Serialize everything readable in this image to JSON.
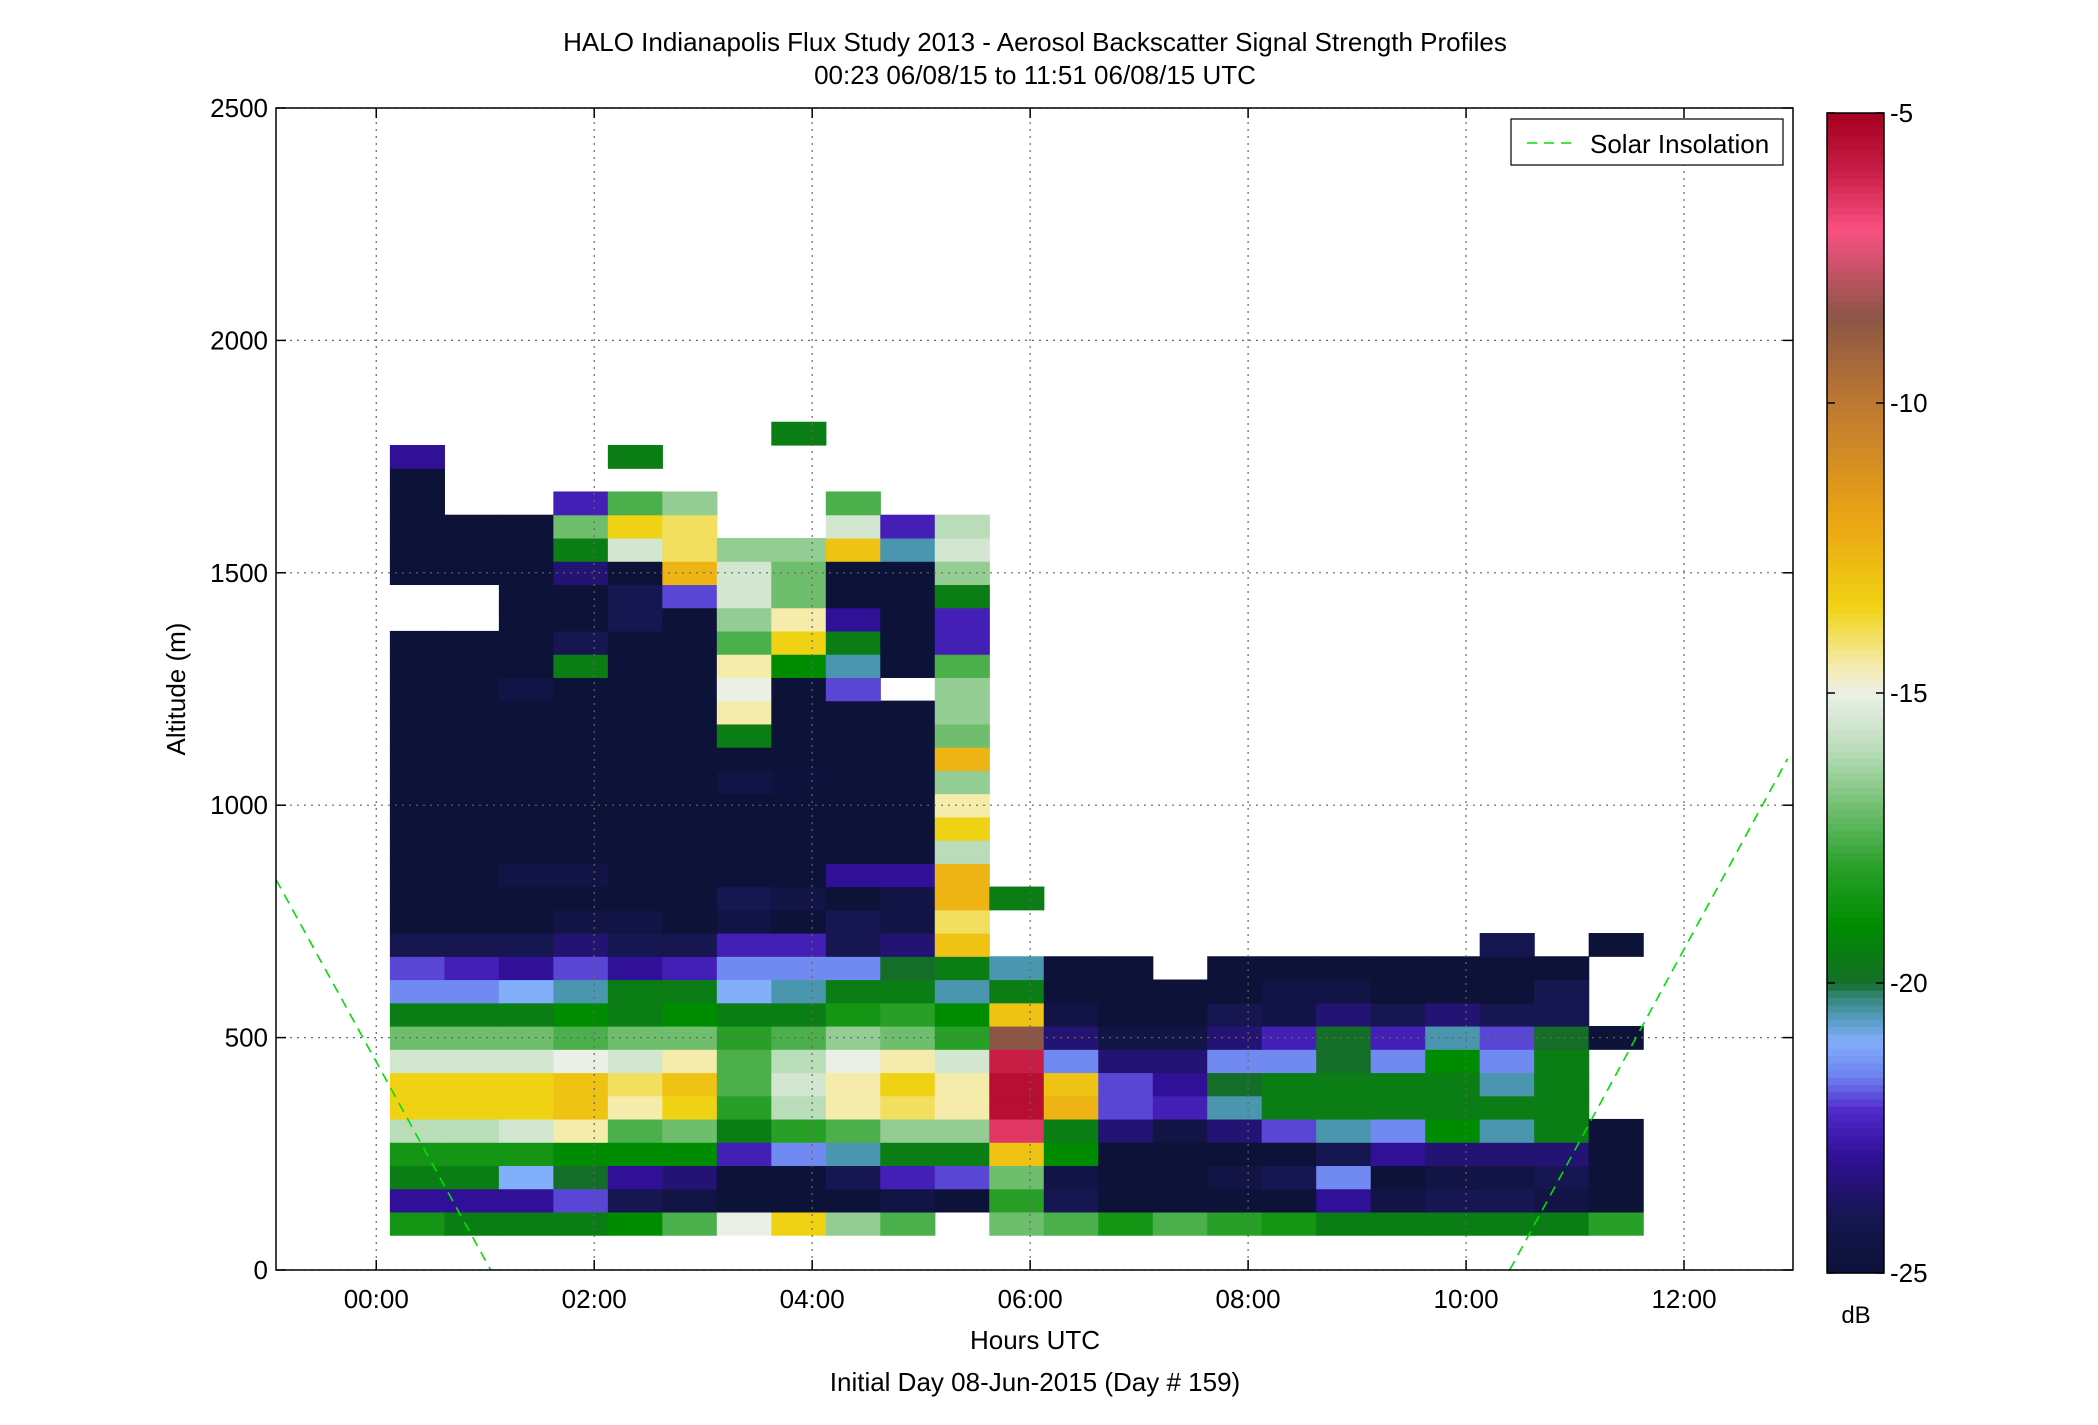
{
  "chart_data": {
    "type": "heatmap",
    "title": "HALO Indianapolis Flux Study 2013 - Aerosol Backscatter Signal Strength Profiles",
    "subtitle": "00:23 06/08/15 to 11:51 06/08/15  UTC",
    "xlabel": "Hours UTC",
    "xlabel2": "Initial Day 08-Jun-2015 (Day # 159)",
    "ylabel": "Altitude (m)",
    "xlim": [
      -0.92,
      13.0
    ],
    "ylim": [
      0,
      2500
    ],
    "xticks": [
      0,
      2,
      4,
      6,
      8,
      10,
      12
    ],
    "xtick_labels": [
      "00:00",
      "02:00",
      "04:00",
      "06:00",
      "08:00",
      "10:00",
      "12:00"
    ],
    "yticks": [
      0,
      500,
      1000,
      1500,
      2000,
      2500
    ],
    "ytick_labels": [
      "0",
      "500",
      "1000",
      "1500",
      "2000",
      "2500"
    ],
    "grid": true,
    "legend": {
      "placement": "top-right",
      "entries": [
        "Solar Insolation"
      ]
    },
    "colorbar": {
      "unit": "dB",
      "range": [
        -25,
        -5
      ],
      "ticks": [
        -25,
        -20,
        -15,
        -10,
        -5
      ],
      "tick_labels": [
        "-25",
        "-20",
        "-15",
        "-10",
        "-5"
      ]
    },
    "x": [
      0.375,
      0.875,
      1.375,
      1.875,
      2.375,
      2.875,
      3.375,
      3.875,
      4.375,
      4.875,
      5.375,
      5.875,
      6.375,
      6.875,
      7.375,
      7.875,
      8.375,
      8.875,
      9.375,
      9.875,
      10.375,
      10.875,
      11.375
    ],
    "y": [
      100,
      150,
      200,
      250,
      300,
      350,
      400,
      450,
      500,
      550,
      600,
      650,
      700,
      750,
      800,
      850,
      900,
      950,
      1000,
      1050,
      1100,
      1150,
      1200,
      1250,
      1300,
      1350,
      1400,
      1450,
      1500,
      1550,
      1600,
      1650,
      1700,
      1750,
      1800
    ],
    "values": [
      [
        -18.5,
        -19.5,
        -19.5,
        -19.5,
        -19,
        -17.5,
        -15,
        -13.5,
        -16.5,
        -17.5,
        null,
        -17,
        -17.5,
        -18.5,
        -17.5,
        -18,
        -18.5,
        -19.5,
        -19.5,
        -19.5,
        -19.5,
        -19.5,
        -18
      ],
      [
        -23,
        -23,
        -23,
        -22,
        -24,
        -24.5,
        -25,
        -25,
        -25,
        -24.5,
        -25,
        -18,
        -24,
        -25,
        -25,
        -25,
        -25,
        -23,
        -24.5,
        -24,
        -24,
        -24.5,
        -25
      ],
      [
        -19.5,
        -19.5,
        -21,
        -20,
        -23,
        -23.5,
        -25,
        -25,
        -24,
        -22.5,
        -22,
        -17,
        -24.5,
        -25,
        -25,
        -24.5,
        -24,
        -21.5,
        -25,
        -24.5,
        -24.5,
        -24,
        -25
      ],
      [
        -18.5,
        -18.5,
        -18.5,
        -19,
        -19,
        -19,
        -22.5,
        -21.5,
        -20.5,
        -19.5,
        -19.5,
        -13,
        -19,
        -25,
        -25,
        -25,
        -25,
        -24,
        -23,
        -23.5,
        -23.5,
        -23.5,
        -25
      ],
      [
        -16,
        -16,
        -15.5,
        -14.5,
        -17.5,
        -17,
        -19.5,
        -18,
        -17.5,
        -16.5,
        -16.5,
        -6.5,
        -19.5,
        -23.5,
        -24.5,
        -23.5,
        -22,
        -20.5,
        -21.5,
        -19,
        -20.5,
        -19.5,
        -25
      ],
      [
        -13.5,
        -13.5,
        -13.5,
        -13,
        -14.5,
        -13.5,
        -18,
        -16,
        -14.5,
        -14,
        -14.5,
        -5.5,
        -12.5,
        -22,
        -22.5,
        -20.5,
        -19.5,
        -19.5,
        -19.5,
        -19.5,
        -19.5,
        -19.5,
        null
      ],
      [
        -13.5,
        -13.5,
        -13.5,
        -13,
        -14,
        -13,
        -17.5,
        -15.5,
        -14.5,
        -13.5,
        -14.5,
        -5.5,
        -13,
        -22,
        -23,
        -20,
        -19.5,
        -19.5,
        -19.5,
        -19.5,
        -20.5,
        -19.5,
        null
      ],
      [
        -15.5,
        -15.5,
        -15.5,
        -15,
        -15.5,
        -14.5,
        -17.5,
        -16,
        -15,
        -14.5,
        -15.5,
        -6,
        -21.5,
        -23.5,
        -23.5,
        -21.5,
        -21.5,
        -20,
        -21.5,
        -19,
        -21.5,
        -19.5,
        null
      ],
      [
        -17,
        -17,
        -17,
        -17.5,
        -17,
        -17,
        -18,
        -17.5,
        -16.5,
        -17,
        -18,
        -8.5,
        -23.5,
        -24.5,
        -24.5,
        -23.5,
        -22.5,
        -20,
        -22.5,
        -20.5,
        -22,
        -20,
        -25
      ],
      [
        -19.5,
        -19.5,
        -19.5,
        -19,
        -19.5,
        -19,
        -19.5,
        -19.5,
        -18.5,
        -18,
        -19,
        -13,
        -24.5,
        -25,
        -25,
        -24,
        -24.5,
        -23.5,
        -24,
        -23.5,
        -24,
        -24,
        null
      ],
      [
        -21.5,
        -21.5,
        -21,
        -20.5,
        -19.5,
        -19.5,
        -21,
        -20.5,
        -19.5,
        -19.5,
        -20.5,
        -19.5,
        -25,
        -25,
        -25,
        -25,
        -24.5,
        -24.5,
        -25,
        -25,
        -25,
        -24,
        null
      ],
      [
        -22,
        -22.5,
        -23,
        -22,
        -23,
        -22.5,
        -21.5,
        -21.5,
        -21.5,
        -20,
        -19.5,
        -20.5,
        -25,
        -25,
        null,
        -25,
        -25,
        -25,
        -25,
        -25,
        -25,
        -25,
        null
      ],
      [
        -24,
        -24,
        -24,
        -23.5,
        -24,
        -24,
        -22.5,
        -22.5,
        -24,
        -23.5,
        -13,
        null,
        null,
        null,
        null,
        null,
        null,
        null,
        null,
        null,
        -24,
        null,
        -25
      ],
      [
        -25,
        -25,
        -25,
        -24.5,
        -24.5,
        -25,
        -24.5,
        -25,
        -24,
        -24.5,
        -14,
        null,
        null,
        null,
        null,
        null,
        null,
        null,
        null,
        null,
        null,
        null,
        null
      ],
      [
        -25,
        -25,
        -25,
        -25,
        -25,
        -25,
        -24,
        -24.5,
        -25,
        -24.5,
        -12.5,
        -19.5,
        null,
        null,
        null,
        null,
        null,
        null,
        null,
        null,
        null,
        null,
        null
      ],
      [
        -25,
        -25,
        -24.5,
        -24.5,
        -25,
        -25,
        -25,
        -25,
        -23,
        -23,
        -12.5,
        null,
        null,
        null,
        null,
        null,
        null,
        null,
        null,
        null,
        null,
        null,
        null
      ],
      [
        -25,
        -25,
        -25,
        -25,
        -25,
        -25,
        -25,
        -25,
        -25,
        -25,
        -16,
        null,
        null,
        null,
        null,
        null,
        null,
        null,
        null,
        null,
        null,
        null,
        null
      ],
      [
        -25,
        -25,
        -25,
        -25,
        -25,
        -25,
        -25,
        -25,
        -25,
        -25,
        -13.5,
        null,
        null,
        null,
        null,
        null,
        null,
        null,
        null,
        null,
        null,
        null,
        null
      ],
      [
        -25,
        -25,
        -25,
        -25,
        -25,
        -25,
        -25,
        -25,
        -25,
        -25,
        -14.5,
        null,
        null,
        null,
        null,
        null,
        null,
        null,
        null,
        null,
        null,
        null,
        null
      ],
      [
        -25,
        -25,
        -25,
        -25,
        -25,
        -25,
        -24.5,
        -24.8,
        -25,
        -25,
        -16.5,
        null,
        null,
        null,
        null,
        null,
        null,
        null,
        null,
        null,
        null,
        null,
        null
      ],
      [
        -25,
        -25,
        -25,
        -25,
        -25,
        -25,
        -25,
        -25,
        -25,
        -25,
        -12.5,
        null,
        null,
        null,
        null,
        null,
        null,
        null,
        null,
        null,
        null,
        null,
        null
      ],
      [
        -25,
        -25,
        -25,
        -25,
        -25,
        -25,
        -19.5,
        -25,
        -25,
        -25,
        -17,
        null,
        null,
        null,
        null,
        null,
        null,
        null,
        null,
        null,
        null,
        null,
        null
      ],
      [
        -25,
        -25,
        -25,
        -25,
        -25,
        -25,
        -14.5,
        -25,
        -25,
        -25,
        -16.5,
        null,
        null,
        null,
        null,
        null,
        null,
        null,
        null,
        null,
        null,
        null,
        null
      ],
      [
        -25,
        -25,
        -24.5,
        -25,
        -25,
        -25,
        -15,
        -25,
        -22,
        null,
        -16.5,
        null,
        null,
        null,
        null,
        null,
        null,
        null,
        null,
        null,
        null,
        null,
        null
      ],
      [
        -25,
        -25,
        -25,
        -19.5,
        -25,
        -25,
        -14.5,
        -19,
        -20.5,
        -25,
        -17.5,
        null,
        null,
        null,
        null,
        null,
        null,
        null,
        null,
        null,
        null,
        null,
        null
      ],
      [
        -25,
        -25,
        -25,
        -24,
        -25,
        -25,
        -17.5,
        -13.5,
        -19.5,
        -25,
        -22.5,
        null,
        null,
        null,
        null,
        null,
        null,
        null,
        null,
        null,
        null,
        null,
        null
      ],
      [
        null,
        null,
        -25,
        -25,
        -24,
        -25,
        -16.5,
        -14.5,
        -23,
        -25,
        -22.5,
        null,
        null,
        null,
        null,
        null,
        null,
        null,
        null,
        null,
        null,
        null,
        null
      ],
      [
        null,
        null,
        -25,
        -25,
        -24,
        -22,
        -15.5,
        -17,
        -25,
        -25,
        -19.5,
        null,
        null,
        null,
        null,
        null,
        null,
        null,
        null,
        null,
        null,
        null,
        null
      ],
      [
        -25,
        -25,
        -25,
        -23.5,
        -25,
        -12.5,
        -15.5,
        -17,
        -25,
        -25,
        -16.5,
        null,
        null,
        null,
        null,
        null,
        null,
        null,
        null,
        null,
        null,
        null,
        null
      ],
      [
        -25,
        -25,
        -25,
        -19.5,
        -15.5,
        -14,
        -16.5,
        -16.5,
        -13,
        -20.5,
        -15.5,
        null,
        null,
        null,
        null,
        null,
        null,
        null,
        null,
        null,
        null,
        null,
        null
      ],
      [
        -25,
        -25,
        -25,
        -17,
        -13.5,
        -14,
        null,
        null,
        -15.5,
        -22.5,
        -16,
        null,
        null,
        null,
        null,
        null,
        null,
        null,
        null,
        null,
        null,
        null,
        null
      ],
      [
        -25,
        null,
        null,
        -22.5,
        -17.5,
        -16.5,
        null,
        null,
        -17.5,
        null,
        null,
        null,
        null,
        null,
        null,
        null,
        null,
        null,
        null,
        null,
        null,
        null,
        null
      ],
      [
        -25,
        null,
        null,
        null,
        null,
        null,
        null,
        null,
        null,
        null,
        null,
        null,
        null,
        null,
        null,
        null,
        null,
        null,
        null,
        null,
        null,
        null,
        null
      ],
      [
        -23,
        null,
        null,
        null,
        -19.5,
        null,
        null,
        null,
        null,
        null,
        null,
        null,
        null,
        null,
        null,
        null,
        null,
        null,
        null,
        null,
        null,
        null,
        null
      ],
      [
        null,
        null,
        null,
        null,
        null,
        null,
        null,
        -19.5,
        null,
        null,
        null,
        null,
        null,
        null,
        null,
        null,
        null,
        null,
        null,
        null,
        null,
        null,
        null
      ]
    ],
    "solar_insolation": [
      {
        "x": [
          -0.92,
          1.05
        ],
        "y": [
          840,
          0
        ]
      },
      {
        "x": [
          10.4,
          12.95
        ],
        "y": [
          0,
          1100
        ]
      }
    ]
  }
}
